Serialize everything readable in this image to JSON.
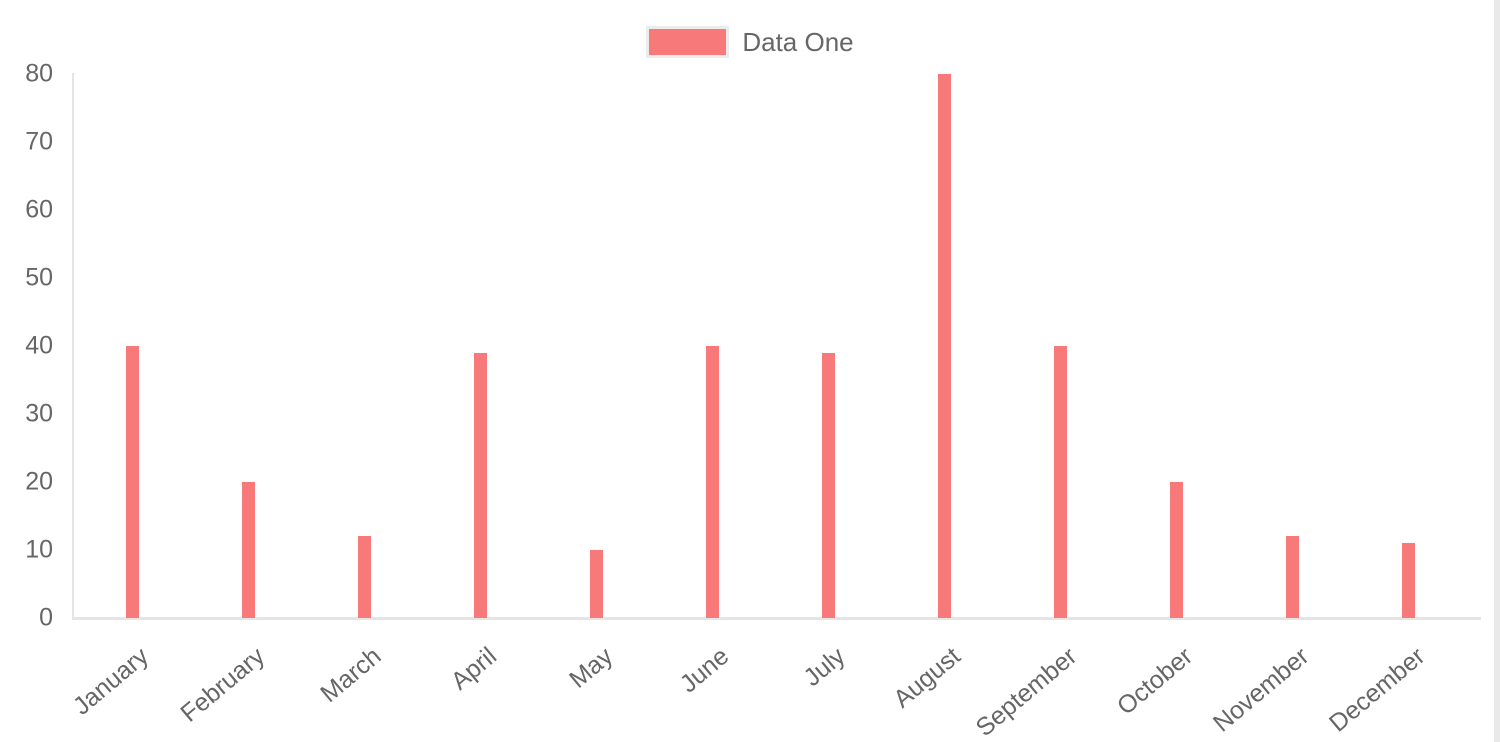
{
  "chart_data": {
    "type": "bar",
    "title": "",
    "categories": [
      "January",
      "February",
      "March",
      "April",
      "May",
      "June",
      "July",
      "August",
      "September",
      "October",
      "November",
      "December"
    ],
    "series": [
      {
        "name": "Data One",
        "values": [
          40,
          20,
          12,
          39,
          10,
          40,
          39,
          80,
          40,
          20,
          12,
          11
        ],
        "color": "#f87979"
      }
    ],
    "xlabel": "",
    "ylabel": "",
    "ylim": [
      0,
      80
    ],
    "yticks": [
      0,
      10,
      20,
      30,
      40,
      50,
      60,
      70,
      80
    ],
    "grid": false,
    "legend_position": "top-center",
    "x_tick_rotation_deg": -40
  },
  "legend": {
    "items": [
      {
        "label": "Data One",
        "color": "#f87979"
      }
    ]
  },
  "colors": {
    "bar": "#f87979",
    "axis_line": "#e5e5e5",
    "tick_text": "#666666",
    "legend_text": "#666666",
    "legend_swatch_border": "#ececec",
    "scrollbar_track": "#e9e9e9",
    "background": "#ffffff"
  }
}
